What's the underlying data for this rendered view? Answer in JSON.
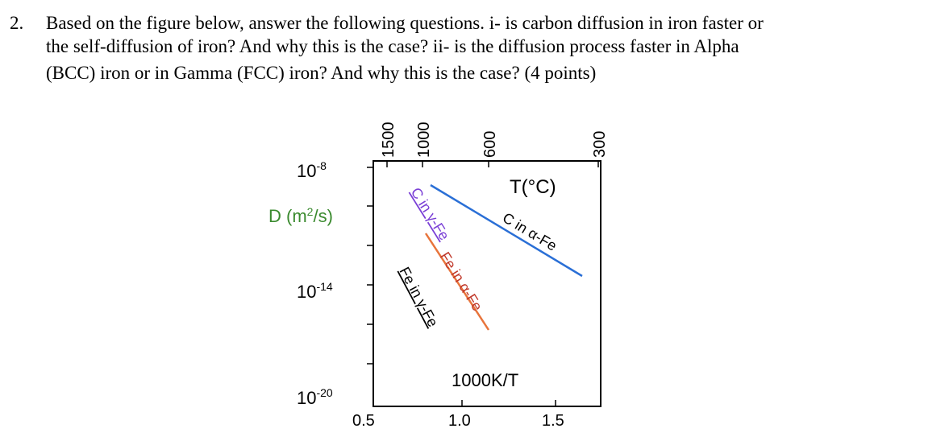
{
  "question": {
    "number": "2.",
    "lines": [
      "Based on the figure below, answer the following questions. i- is carbon diffusion in iron faster or",
      "the self-diffusion of iron? And why this is the case? ii- is the diffusion process faster in Alpha",
      "(BCC) iron or in Gamma (FCC) iron? And why this is the case? (4 points)"
    ]
  },
  "figure": {
    "top_labels": [
      "1500",
      "1000",
      "600",
      "300"
    ],
    "top_axis_label": "T(°C)",
    "left_labels": [
      {
        "base": "10",
        "exp": "-8"
      },
      {
        "base": "10",
        "exp": "-14"
      },
      {
        "base": "10",
        "exp": "-20"
      }
    ],
    "left_axis_label": {
      "base": "D (m",
      "sup": "2",
      "end": "/s)"
    },
    "bottom_labels": [
      "0.5",
      "1.0",
      "1.5"
    ],
    "bottom_axis_label": "1000K/T",
    "curves": [
      "C in α-Fe",
      "C in γ-Fe",
      "Fe in α-Fe",
      "Fe in γ-Fe"
    ]
  }
}
